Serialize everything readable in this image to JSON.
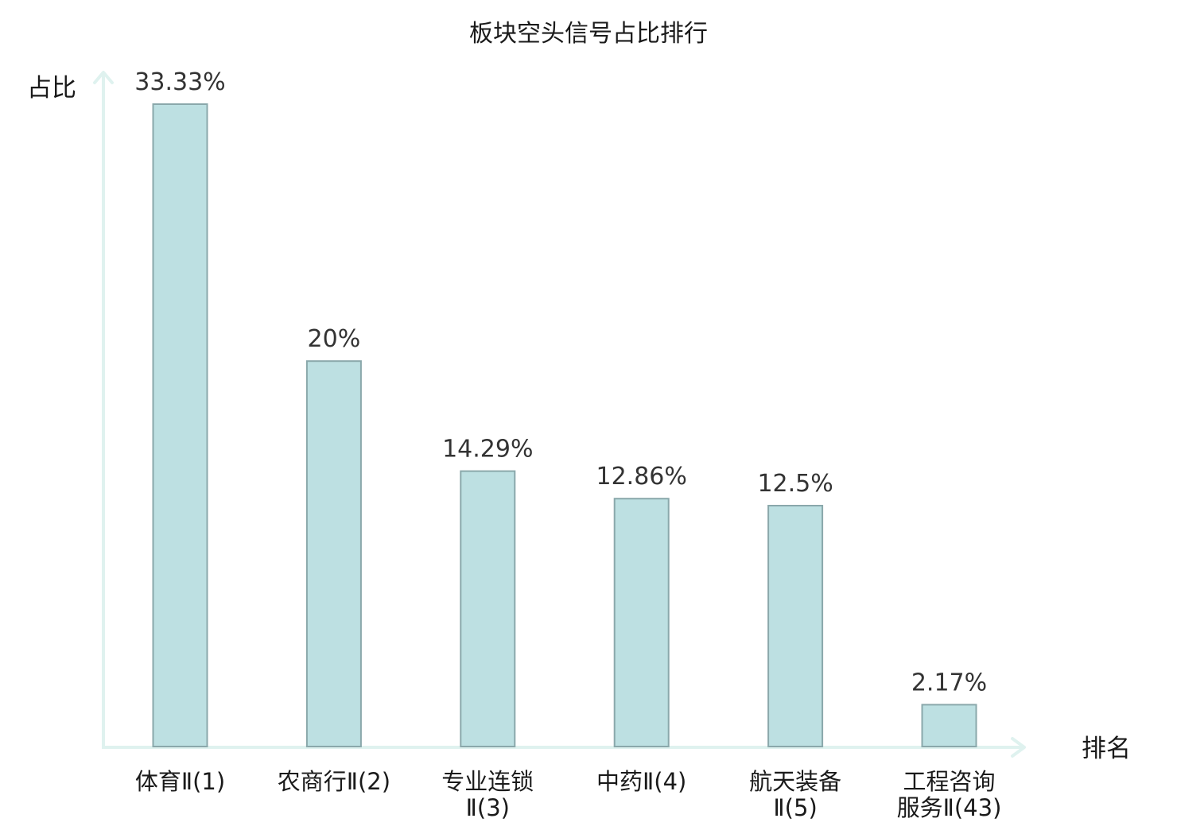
{
  "chart_data": {
    "type": "bar",
    "title": "板块空头信号占比排行",
    "ylabel": "占比",
    "xlabel": "排名",
    "ylim": [
      0,
      35
    ],
    "grid": false,
    "legend": "none",
    "categories": [
      [
        "体育Ⅱ(1)"
      ],
      [
        "农商行Ⅱ(2)"
      ],
      [
        "专业连锁",
        "Ⅱ(3)"
      ],
      [
        "中药Ⅱ(4)"
      ],
      [
        "航天装备",
        "Ⅱ(5)"
      ],
      [
        "工程咨询",
        "服务Ⅱ(43)"
      ]
    ],
    "values": [
      33.33,
      20,
      14.29,
      12.86,
      12.5,
      2.17
    ],
    "value_labels": [
      "33.33%",
      "20%",
      "14.29%",
      "12.86%",
      "12.5%",
      "2.17%"
    ],
    "highlight_index": 5,
    "colors": {
      "bar_fill": "#bde0e2",
      "bar_stroke": "#8aa8ab",
      "axis": "#dff2ef",
      "text": "#1a1a1a",
      "value_text": "#333333",
      "highlight_text": "#e0141e"
    }
  }
}
